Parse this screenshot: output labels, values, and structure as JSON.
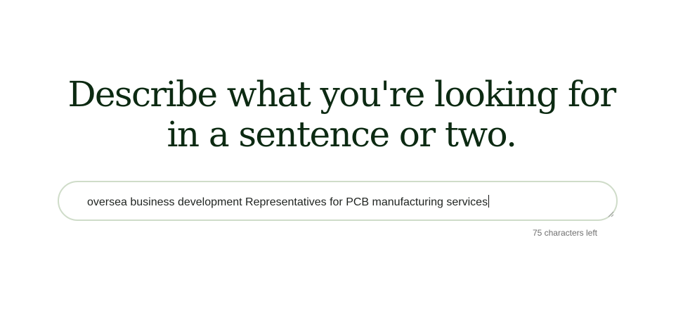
{
  "prompt": {
    "title_line1": "Describe what you're looking for",
    "title_line2": "in a sentence or two."
  },
  "description_input": {
    "value": "oversea business development Representatives for PCB manufacturing services"
  },
  "character_counter": {
    "text": "75 characters left"
  }
}
